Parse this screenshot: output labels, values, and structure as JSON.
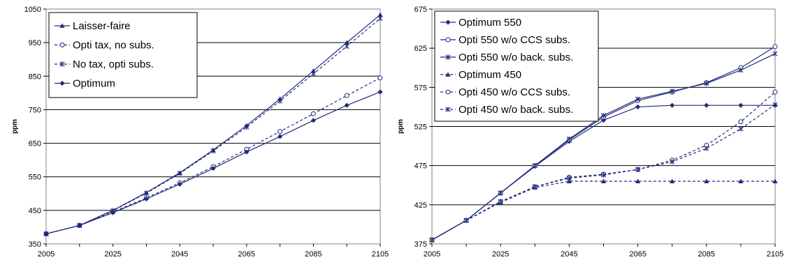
{
  "chart_data": [
    {
      "type": "line",
      "title": "",
      "xlabel": "",
      "ylabel": "ppm",
      "x": [
        2005,
        2015,
        2025,
        2035,
        2045,
        2055,
        2065,
        2075,
        2085,
        2095,
        2105
      ],
      "xticks": [
        "2005",
        "2025",
        "2045",
        "2065",
        "2085",
        "2105"
      ],
      "yticks": [
        "350",
        "450",
        "550",
        "650",
        "750",
        "850",
        "950",
        "1050"
      ],
      "ylim": [
        350,
        1050
      ],
      "grid": true,
      "legend_position": "top-left",
      "series": [
        {
          "name": "Laisser-faire",
          "values": [
            380,
            405,
            450,
            503,
            562,
            630,
            703,
            782,
            866,
            950,
            1033
          ],
          "color": "#1f2a7a",
          "dash": "solid",
          "marker": "triangle"
        },
        {
          "name": "Opti tax, no subs.",
          "values": [
            380,
            405,
            445,
            487,
            532,
            580,
            632,
            685,
            738,
            792,
            845
          ],
          "color": "#1f2a7a",
          "dash": "dashed",
          "marker": "circle"
        },
        {
          "name": "No tax, opti subs.",
          "values": [
            380,
            405,
            449,
            501,
            560,
            627,
            698,
            776,
            857,
            939,
            1022
          ],
          "color": "#1f2a7a",
          "dash": "dashed",
          "marker": "star"
        },
        {
          "name": "Optimum",
          "values": [
            380,
            405,
            443,
            484,
            528,
            575,
            624,
            670,
            718,
            763,
            803
          ],
          "color": "#1f2a7a",
          "dash": "solid",
          "marker": "diamond"
        }
      ]
    },
    {
      "type": "line",
      "title": "",
      "xlabel": "",
      "ylabel": "ppm",
      "x": [
        2005,
        2015,
        2025,
        2035,
        2045,
        2055,
        2065,
        2075,
        2085,
        2095,
        2105
      ],
      "xticks": [
        "2005",
        "2025",
        "2045",
        "2065",
        "2085",
        "2105"
      ],
      "yticks": [
        "375",
        "425",
        "475",
        "525",
        "575",
        "625",
        "675"
      ],
      "ylim": [
        375,
        675
      ],
      "grid": true,
      "legend_position": "top-left",
      "series": [
        {
          "name": "Optimum 550",
          "values": [
            380,
            405,
            440,
            474,
            506,
            533,
            550,
            552,
            552,
            552,
            552
          ],
          "color": "#1f2a7a",
          "dash": "solid",
          "marker": "diamond"
        },
        {
          "name": "Opti 550 w/o CCS subs.",
          "values": [
            380,
            405,
            440,
            475,
            508,
            537,
            558,
            569,
            581,
            600,
            627
          ],
          "color": "#1f2a7a",
          "dash": "solid",
          "marker": "circle"
        },
        {
          "name": "Opti 550 w/o back. subs.",
          "values": [
            380,
            405,
            440,
            475,
            509,
            539,
            560,
            570,
            580,
            597,
            618
          ],
          "color": "#1f2a7a",
          "dash": "solid",
          "marker": "star"
        },
        {
          "name": "Optimum 450",
          "values": [
            380,
            405,
            428,
            447,
            455,
            455,
            455,
            455,
            455,
            455,
            455
          ],
          "color": "#1f2a7a",
          "dash": "dashed",
          "marker": "triangle"
        },
        {
          "name": "Opti 450 w/o CCS subs.",
          "values": [
            380,
            405,
            429,
            448,
            460,
            464,
            470,
            482,
            501,
            531,
            569
          ],
          "color": "#1f2a7a",
          "dash": "dashed",
          "marker": "circle"
        },
        {
          "name": "Opti 450 w/o back. subs.",
          "values": [
            380,
            405,
            429,
            448,
            459,
            463,
            470,
            480,
            497,
            522,
            553
          ],
          "color": "#1f2a7a",
          "dash": "dashed",
          "marker": "star"
        }
      ]
    }
  ]
}
